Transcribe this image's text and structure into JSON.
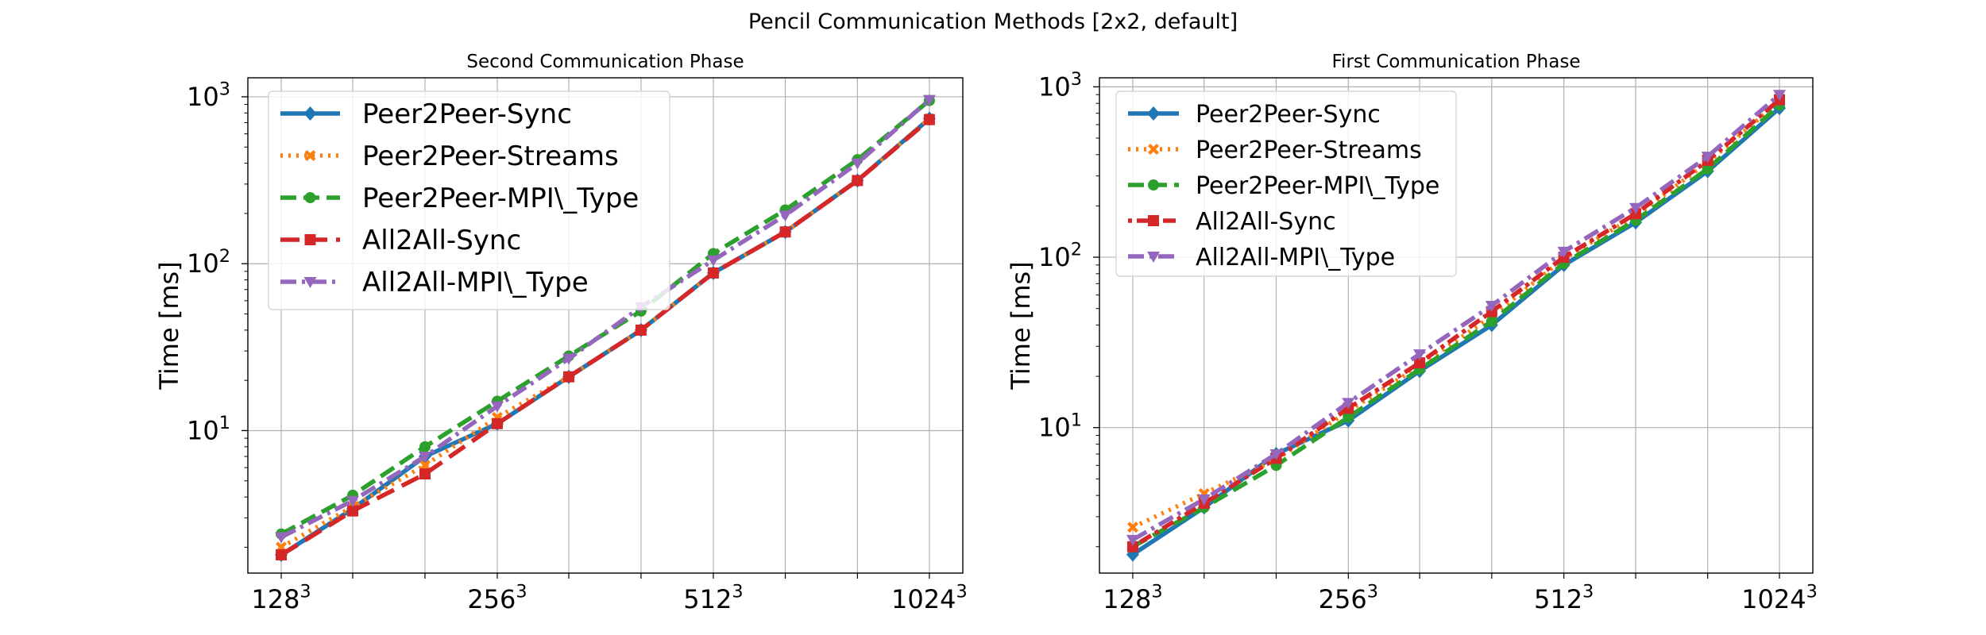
{
  "figure_title": "Pencil Communication Methods [2x2, default]",
  "colors": {
    "Peer2Peer-Sync": "#1f77b4",
    "Peer2Peer-Streams": "#ff7f0e",
    "Peer2Peer-MPI\\_Type": "#2ca02c",
    "All2All-Sync": "#d62728",
    "All2All-MPI\\_Type": "#9467bd"
  },
  "chart_data": [
    {
      "type": "line",
      "title": "Second Communication Phase",
      "ylabel": "Time [ms]",
      "xlabel": "",
      "x": [
        128,
        161,
        203,
        256,
        322,
        406,
        512,
        645,
        813,
        1024
      ],
      "x_ticks": [
        {
          "value": 128,
          "base": "128",
          "exp": "3"
        },
        {
          "value": 256,
          "base": "256",
          "exp": "3"
        },
        {
          "value": 512,
          "base": "512",
          "exp": "3"
        },
        {
          "value": 1024,
          "base": "1024",
          "exp": "3"
        }
      ],
      "x_scale": "log",
      "y_scale": "log",
      "xlim": [
        115,
        1140
      ],
      "ylim": [
        1.4,
        1300
      ],
      "y_ticks": [
        {
          "value": 10,
          "base": "10",
          "exp": "1"
        },
        {
          "value": 100,
          "base": "10",
          "exp": "2"
        },
        {
          "value": 1000,
          "base": "10",
          "exp": "3"
        }
      ],
      "grid": true,
      "legend_position": "upper-left",
      "series": [
        {
          "name": "Peer2Peer-Sync",
          "marker": "diamond",
          "dash": "solid",
          "values": [
            1.8,
            3.4,
            7.0,
            11.0,
            21,
            40,
            88,
            155,
            315,
            740
          ]
        },
        {
          "name": "Peer2Peer-Streams",
          "marker": "x",
          "dash": "dotted",
          "values": [
            2.0,
            3.5,
            6.2,
            12.0,
            21,
            40,
            88,
            155,
            315,
            740
          ]
        },
        {
          "name": "Peer2Peer-MPI\\_Type",
          "marker": "circle",
          "dash": "dashed",
          "values": [
            2.4,
            4.1,
            8.0,
            15.0,
            28,
            52,
            115,
            210,
            420,
            950
          ]
        },
        {
          "name": "All2All-Sync",
          "marker": "square",
          "dash": "longdash",
          "values": [
            1.8,
            3.3,
            5.5,
            11.0,
            21,
            40,
            88,
            155,
            315,
            730
          ]
        },
        {
          "name": "All2All-MPI\\_Type",
          "marker": "triangle-down",
          "dash": "dashdot",
          "values": [
            2.3,
            3.8,
            7.0,
            14.0,
            27,
            55,
            105,
            195,
            400,
            960
          ]
        }
      ]
    },
    {
      "type": "line",
      "title": "First Communication Phase",
      "ylabel": "Time [ms]",
      "xlabel": "",
      "x": [
        128,
        161,
        203,
        256,
        322,
        406,
        512,
        645,
        813,
        1024
      ],
      "x_ticks": [
        {
          "value": 128,
          "base": "128",
          "exp": "3"
        },
        {
          "value": 256,
          "base": "256",
          "exp": "3"
        },
        {
          "value": 512,
          "base": "512",
          "exp": "3"
        },
        {
          "value": 1024,
          "base": "1024",
          "exp": "3"
        }
      ],
      "x_scale": "log",
      "y_scale": "log",
      "xlim": [
        115,
        1140
      ],
      "ylim": [
        1.4,
        1130
      ],
      "y_ticks": [
        {
          "value": 10,
          "base": "10",
          "exp": "1"
        },
        {
          "value": 100,
          "base": "10",
          "exp": "2"
        },
        {
          "value": 1000,
          "base": "10",
          "exp": "3"
        }
      ],
      "grid": true,
      "legend_position": "upper-left",
      "series": [
        {
          "name": "Peer2Peer-Sync",
          "marker": "diamond",
          "dash": "solid",
          "values": [
            1.8,
            3.4,
            7.0,
            11.0,
            21.5,
            40,
            90,
            160,
            320,
            750
          ]
        },
        {
          "name": "Peer2Peer-Streams",
          "marker": "x",
          "dash": "dotted",
          "values": [
            2.6,
            4.1,
            6.5,
            12.5,
            23,
            45,
            98,
            175,
            360,
            820
          ]
        },
        {
          "name": "Peer2Peer-MPI\\_Type",
          "marker": "circle",
          "dash": "dashed",
          "values": [
            2.0,
            3.4,
            6.0,
            11.5,
            22,
            42,
            92,
            165,
            330,
            780
          ]
        },
        {
          "name": "All2All-Sync",
          "marker": "square",
          "dash": "dashdotted",
          "values": [
            2.0,
            3.6,
            6.6,
            13.0,
            24,
            48,
            100,
            180,
            370,
            840
          ]
        },
        {
          "name": "All2All-MPI\\_Type",
          "marker": "triangle-down",
          "dash": "dashdot",
          "values": [
            2.2,
            3.8,
            7.0,
            14.0,
            27,
            52,
            108,
            195,
            390,
            900
          ]
        }
      ]
    }
  ]
}
